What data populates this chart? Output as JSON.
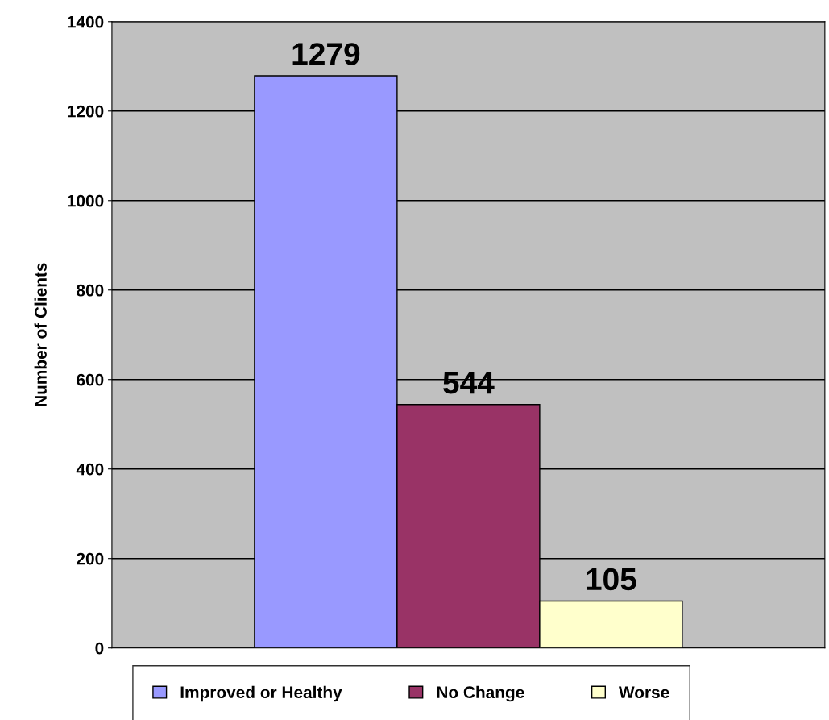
{
  "chart_data": {
    "type": "bar",
    "ylabel": "Number of Clients",
    "categories": [
      null
    ],
    "series": [
      {
        "name": "Improved or Healthy",
        "color": "#9999ff",
        "values": [
          1279
        ]
      },
      {
        "name": "No Change",
        "color": "#993366",
        "values": [
          544
        ]
      },
      {
        "name": "Worse",
        "color": "#ffffcc",
        "values": [
          105
        ]
      }
    ],
    "ylim": [
      0,
      1400
    ],
    "yticks": [
      0,
      200,
      400,
      600,
      800,
      1000,
      1200,
      1400
    ],
    "grid": "y",
    "legend": "bottom",
    "data_labels": true
  }
}
